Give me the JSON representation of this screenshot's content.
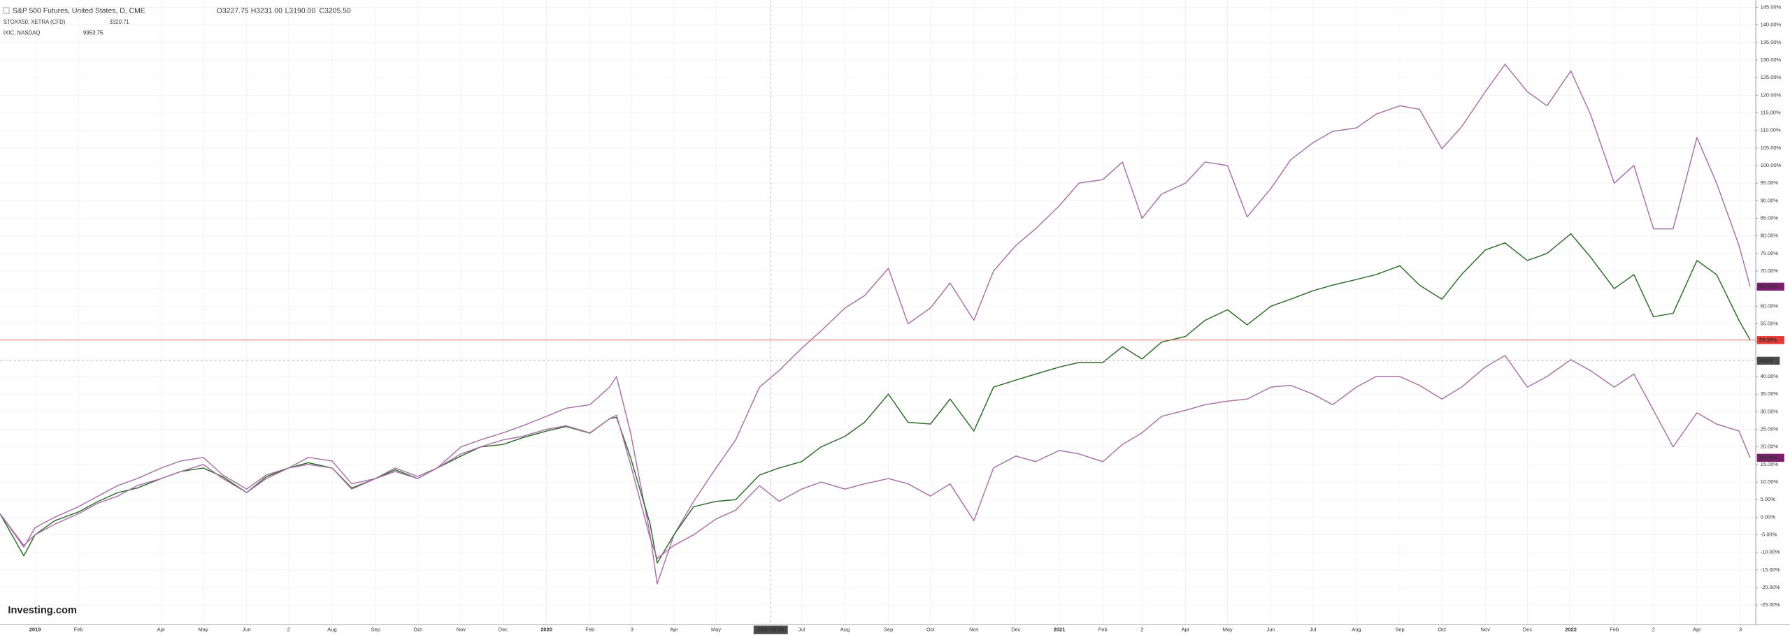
{
  "chart_data": {
    "type": "line",
    "title": "S&P 500 Futures, United States, D, CME",
    "ohlc": [
      "O3227.75",
      "H3231.00",
      "L3190.00",
      "C3205.50"
    ],
    "watermark": "Investing.com",
    "grid": true,
    "xlim": [
      "2018-12-07",
      "2022-05-13"
    ],
    "ylim": [
      -30.5,
      147
    ],
    "x": [
      "2018-12-07",
      "2018-12-24",
      "2019-01-01",
      "2019-01-15",
      "2019-02-01",
      "2019-02-15",
      "2019-03-01",
      "2019-03-15",
      "2019-04-01",
      "2019-04-15",
      "2019-05-01",
      "2019-05-15",
      "2019-06-01",
      "2019-06-15",
      "2019-07-01",
      "2019-07-15",
      "2019-08-01",
      "2019-08-15",
      "2019-09-01",
      "2019-09-15",
      "2019-10-01",
      "2019-10-15",
      "2019-11-01",
      "2019-11-15",
      "2019-12-01",
      "2019-12-15",
      "2020-01-01",
      "2020-01-15",
      "2020-02-01",
      "2020-02-15",
      "2020-02-20",
      "2020-03-01",
      "2020-03-15",
      "2020-03-20",
      "2020-04-01",
      "2020-04-15",
      "2020-05-01",
      "2020-05-15",
      "2020-06-01",
      "2020-06-15",
      "2020-07-01",
      "2020-07-15",
      "2020-08-01",
      "2020-08-15",
      "2020-09-01",
      "2020-09-15",
      "2020-10-01",
      "2020-10-15",
      "2020-11-01",
      "2020-11-15",
      "2020-12-01",
      "2020-12-15",
      "2021-01-01",
      "2021-01-15",
      "2021-02-01",
      "2021-02-15",
      "2021-03-01",
      "2021-03-15",
      "2021-04-01",
      "2021-04-15",
      "2021-05-01",
      "2021-05-15",
      "2021-06-01",
      "2021-06-15",
      "2021-07-01",
      "2021-07-15",
      "2021-08-01",
      "2021-08-15",
      "2021-09-01",
      "2021-09-15",
      "2021-10-01",
      "2021-10-15",
      "2021-11-01",
      "2021-11-15",
      "2021-12-01",
      "2021-12-15",
      "2022-01-01",
      "2022-01-15",
      "2022-02-01",
      "2022-02-15",
      "2022-03-01",
      "2022-03-15",
      "2022-04-01",
      "2022-04-15",
      "2022-05-01",
      "2022-05-09"
    ],
    "series": [
      {
        "name": "IXIC, NASDAQ",
        "legend_value": "9953.75",
        "color": "#a871a8",
        "label_color": "#7a1f6e",
        "last_value_label": {
          "value": 65.56,
          "label": "65.56%"
        },
        "values": [
          1,
          -8.5,
          -3,
          0,
          3,
          6,
          9,
          11,
          14,
          16,
          17,
          12,
          8,
          12,
          14,
          17,
          16,
          9.5,
          11,
          14,
          11.6,
          14,
          20,
          22,
          24,
          26,
          28.7,
          31,
          32,
          37,
          40,
          24,
          -5,
          -19,
          -5,
          4.5,
          14,
          22,
          37,
          41.7,
          48,
          53,
          59.5,
          63,
          70.8,
          55,
          59.5,
          66.6,
          56,
          70,
          77.3,
          82,
          88.6,
          95,
          96,
          101,
          85,
          91.9,
          95,
          101,
          100,
          85.4,
          93.5,
          101.6,
          106.5,
          109.7,
          110.7,
          114.6,
          117,
          116,
          104.8,
          111,
          121,
          128.8,
          121,
          117,
          126.9,
          114.6,
          95,
          100,
          82,
          82,
          108,
          95,
          77.3,
          65.56
        ]
      },
      {
        "name": "S&P 500 Futures",
        "color": "#2f6b2a",
        "label_color": "#e53935",
        "last_value_label": {
          "value": 50.38,
          "label": "50.38%"
        },
        "values": [
          1,
          -11,
          -5,
          -1,
          1.5,
          4.5,
          7,
          8.3,
          11,
          13,
          14,
          11.5,
          7,
          11.5,
          14,
          15.5,
          14,
          8.3,
          11,
          13.5,
          11,
          14,
          17.4,
          20,
          20.7,
          22.6,
          24.5,
          25.8,
          23.9,
          28,
          28.4,
          17,
          -2,
          -13,
          -5,
          3,
          4.5,
          5,
          12,
          14,
          15.8,
          20,
          23,
          27,
          35,
          27,
          26.5,
          33.6,
          24.5,
          37,
          39,
          40.7,
          42.7,
          44,
          44,
          48.5,
          45,
          49.8,
          51.4,
          56,
          59,
          54.7,
          60,
          62,
          64.4,
          66,
          67.6,
          69,
          71.5,
          66,
          62,
          69,
          76,
          78,
          73,
          75,
          80.6,
          74,
          65,
          69,
          57,
          58,
          73,
          69,
          56,
          50.38
        ]
      },
      {
        "name": "STOXX50, XETRA (CFD)",
        "legend_value": "3320.71",
        "color": "#a871a8",
        "label_color": "#7a1f6e",
        "last_value_label": {
          "value": 16.9,
          "label": "16.90%"
        },
        "values": [
          1,
          -8,
          -5,
          -2,
          1,
          4,
          6,
          9,
          11,
          13,
          15,
          11,
          7,
          11,
          14,
          15,
          14,
          8,
          11,
          13,
          11,
          14,
          18,
          20,
          22,
          23,
          25,
          26,
          24,
          28,
          29,
          15,
          -6,
          -11.7,
          -8,
          -5,
          -0.5,
          2,
          9,
          4.5,
          8,
          10,
          8,
          9.5,
          11,
          9.5,
          6,
          9.5,
          -1,
          14,
          17.4,
          15.8,
          19,
          18,
          15.8,
          20.7,
          24,
          28.7,
          30.4,
          32,
          33,
          33.6,
          37,
          37.5,
          35,
          32,
          37,
          40,
          40,
          37.5,
          33.6,
          37,
          42.7,
          46,
          37,
          40,
          44.8,
          41.7,
          37,
          40.7,
          30.4,
          20,
          29.7,
          26.5,
          24.5,
          16.9
        ]
      }
    ],
    "crosshair": {
      "x": "2020-06-09",
      "y": {
        "value": 44.5,
        "label": "44.50"
      }
    },
    "xticks": [
      {
        "value": "2019-01-01",
        "label": "2019"
      },
      {
        "value": "2019-02-01",
        "label": "Feb"
      },
      {
        "value": "2019-04-01",
        "label": "Apr"
      },
      {
        "value": "2019-05-01",
        "label": "May"
      },
      {
        "value": "2019-06-01",
        "label": "Jun"
      },
      {
        "value": "2019-07-01",
        "label": "2"
      },
      {
        "value": "2019-08-01",
        "label": "Aug"
      },
      {
        "value": "2019-09-01",
        "label": "Sep"
      },
      {
        "value": "2019-10-01",
        "label": "Oct"
      },
      {
        "value": "2019-11-01",
        "label": "Nov"
      },
      {
        "value": "2019-12-01",
        "label": "Dec"
      },
      {
        "value": "2020-01-01",
        "label": "2020"
      },
      {
        "value": "2020-02-01",
        "label": "Feb"
      },
      {
        "value": "2020-03-02",
        "label": "3"
      },
      {
        "value": "2020-04-01",
        "label": "Apr"
      },
      {
        "value": "2020-05-01",
        "label": "May"
      },
      {
        "value": "2020-07-01",
        "label": "Jul"
      },
      {
        "value": "2020-08-01",
        "label": "Aug"
      },
      {
        "value": "2020-09-01",
        "label": "Sep"
      },
      {
        "value": "2020-10-01",
        "label": "Oct"
      },
      {
        "value": "2020-11-01",
        "label": "Nov"
      },
      {
        "value": "2020-12-01",
        "label": "Dec"
      },
      {
        "value": "2021-01-01",
        "label": "2021"
      },
      {
        "value": "2021-02-01",
        "label": "Feb"
      },
      {
        "value": "2021-03-01",
        "label": "2"
      },
      {
        "value": "2021-04-01",
        "label": "Apr"
      },
      {
        "value": "2021-05-01",
        "label": "May"
      },
      {
        "value": "2021-06-01",
        "label": "Jun"
      },
      {
        "value": "2021-07-01",
        "label": "Jul"
      },
      {
        "value": "2021-08-01",
        "label": "Aug"
      },
      {
        "value": "2021-09-01",
        "label": "Sep"
      },
      {
        "value": "2021-10-01",
        "label": "Oct"
      },
      {
        "value": "2021-11-01",
        "label": "Nov"
      },
      {
        "value": "2021-12-01",
        "label": "Dec"
      },
      {
        "value": "2022-01-01",
        "label": "2022"
      },
      {
        "value": "2022-02-01",
        "label": "Feb"
      },
      {
        "value": "2022-03-01",
        "label": "2"
      },
      {
        "value": "2022-04-01",
        "label": "Apr"
      },
      {
        "value": "2022-05-02",
        "label": "3"
      }
    ],
    "yticks": [
      {
        "value": 145,
        "label": "145.00%"
      },
      {
        "value": 140,
        "label": "140.00%"
      },
      {
        "value": 135,
        "label": "135.00%"
      },
      {
        "value": 130,
        "label": "130.00%"
      },
      {
        "value": 125,
        "label": "125.00%"
      },
      {
        "value": 120,
        "label": "120.00%"
      },
      {
        "value": 115,
        "label": "115.00%"
      },
      {
        "value": 110,
        "label": "110.00%"
      },
      {
        "value": 105,
        "label": "105.00%"
      },
      {
        "value": 100,
        "label": "100.00%"
      },
      {
        "value": 95,
        "label": "95.00%"
      },
      {
        "value": 90,
        "label": "90.00%"
      },
      {
        "value": 85,
        "label": "85.00%"
      },
      {
        "value": 80,
        "label": "80.00%"
      },
      {
        "value": 75,
        "label": "75.00%"
      },
      {
        "value": 70,
        "label": "70.00%"
      },
      {
        "value": 65,
        "label": "65.00%"
      },
      {
        "value": 60,
        "label": "60.00%"
      },
      {
        "value": 55,
        "label": "55.00%"
      },
      {
        "value": 50,
        "label": "50.00%"
      },
      {
        "value": 45,
        "label": "45.00%"
      },
      {
        "value": 40,
        "label": "40.00%"
      },
      {
        "value": 35,
        "label": "35.00%"
      },
      {
        "value": 30,
        "label": "30.00%"
      },
      {
        "value": 25,
        "label": "25.00%"
      },
      {
        "value": 20,
        "label": "20.00%"
      },
      {
        "value": 15,
        "label": "15.00%"
      },
      {
        "value": 10,
        "label": "10.00%"
      },
      {
        "value": 5,
        "label": "5.00%"
      },
      {
        "value": 0,
        "label": "0.00%"
      },
      {
        "value": -5,
        "label": "-5.00%"
      },
      {
        "value": -10,
        "label": "-10.00%"
      },
      {
        "value": -15,
        "label": "-15.00%"
      },
      {
        "value": -20,
        "label": "-20.00%"
      },
      {
        "value": -25,
        "label": "-25.00%"
      }
    ]
  }
}
